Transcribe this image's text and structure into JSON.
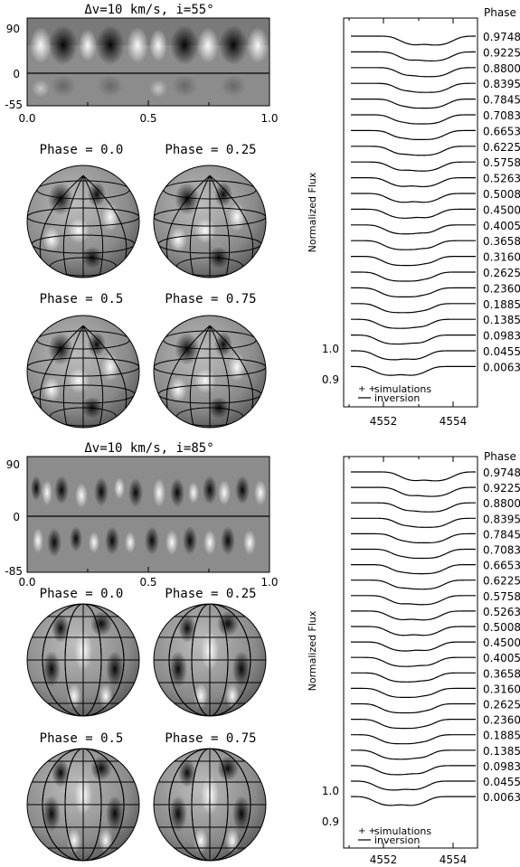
{
  "panels": [
    {
      "title": "Δv=10 km/s, i=55°",
      "map": {
        "y_ticks": [
          "90",
          "0",
          "-55"
        ],
        "x_ticks": [
          "0.0",
          "0.5",
          "1.0"
        ],
        "lat_top": 90,
        "lat_bottom": -55
      },
      "spheres": [
        {
          "label": "Phase = 0.0"
        },
        {
          "label": "Phase = 0.25"
        },
        {
          "label": "Phase = 0.5"
        },
        {
          "label": "Phase = 0.75"
        }
      ],
      "profiles": {
        "phase_header": "Phase",
        "phases": [
          "0.9748",
          "0.9225",
          "0.8800",
          "0.8395",
          "0.7845",
          "0.7083",
          "0.6653",
          "0.6225",
          "0.5758",
          "0.5263",
          "0.5008",
          "0.4500",
          "0.4005",
          "0.3658",
          "0.3160",
          "0.2625",
          "0.2360",
          "0.1885",
          "0.1385",
          "0.0983",
          "0.0455",
          "0.0063"
        ],
        "ylabel": "Normalized Flux",
        "y_ticks": [
          "1.0",
          "0.9"
        ],
        "x_ticks": [
          "4552",
          "4554"
        ],
        "legend": [
          "simulations",
          "inversion"
        ]
      }
    },
    {
      "title": "Δv=10 km/s, i=85°",
      "map": {
        "y_ticks": [
          "90",
          "0",
          "-85"
        ],
        "x_ticks": [
          "0.0",
          "0.5",
          "1.0"
        ],
        "lat_top": 90,
        "lat_bottom": -85
      },
      "spheres": [
        {
          "label": "Phase = 0.0"
        },
        {
          "label": "Phase = 0.25"
        },
        {
          "label": "Phase = 0.5"
        },
        {
          "label": "Phase = 0.75"
        }
      ],
      "profiles": {
        "phase_header": "Phase",
        "phases": [
          "0.9748",
          "0.9225",
          "0.8800",
          "0.8395",
          "0.7845",
          "0.7083",
          "0.6653",
          "0.6225",
          "0.5758",
          "0.5263",
          "0.5008",
          "0.4500",
          "0.4005",
          "0.3658",
          "0.3160",
          "0.2625",
          "0.2360",
          "0.1885",
          "0.1385",
          "0.0983",
          "0.0455",
          "0.0063"
        ],
        "ylabel": "Normalized Flux",
        "y_ticks": [
          "1.0",
          "0.9"
        ],
        "x_ticks": [
          "4552",
          "4554"
        ],
        "legend": [
          "simulations",
          "inversion"
        ]
      }
    }
  ],
  "chart_data": [
    {
      "type": "heatmap",
      "title": "Δv=10 km/s, i=55°",
      "xlim": [
        0.0,
        1.0
      ],
      "ylim": [
        -55,
        90
      ],
      "x_ticks": [
        "0.0",
        "0.5",
        "1.0"
      ],
      "y_ticks": [
        "90",
        "0",
        "-55"
      ]
    },
    {
      "type": "line",
      "ylabel": "Normalized Flux",
      "xlim": [
        4550.7,
        4555.2
      ],
      "x_ticks": [
        "4552",
        "4554"
      ],
      "y_ticks": [
        "1.0",
        "0.9"
      ],
      "series": [
        {
          "name": "simulations"
        },
        {
          "name": "inversion"
        }
      ],
      "phases": [
        "0.9748",
        "0.9225",
        "0.8800",
        "0.8395",
        "0.7845",
        "0.7083",
        "0.6653",
        "0.6225",
        "0.5758",
        "0.5263",
        "0.5008",
        "0.4500",
        "0.4005",
        "0.3658",
        "0.3160",
        "0.2625",
        "0.2360",
        "0.1885",
        "0.1385",
        "0.0983",
        "0.0455",
        "0.0063"
      ]
    },
    {
      "type": "heatmap",
      "title": "Δv=10 km/s, i=85°",
      "xlim": [
        0.0,
        1.0
      ],
      "ylim": [
        -85,
        90
      ],
      "x_ticks": [
        "0.0",
        "0.5",
        "1.0"
      ],
      "y_ticks": [
        "90",
        "0",
        "-85"
      ]
    },
    {
      "type": "line",
      "ylabel": "Normalized Flux",
      "xlim": [
        4550.7,
        4555.2
      ],
      "x_ticks": [
        "4552",
        "4554"
      ],
      "y_ticks": [
        "1.0",
        "0.9"
      ],
      "series": [
        {
          "name": "simulations"
        },
        {
          "name": "inversion"
        }
      ],
      "phases": [
        "0.9748",
        "0.9225",
        "0.8800",
        "0.8395",
        "0.7845",
        "0.7083",
        "0.6653",
        "0.6225",
        "0.5758",
        "0.5263",
        "0.5008",
        "0.4500",
        "0.4005",
        "0.3658",
        "0.3160",
        "0.2625",
        "0.2360",
        "0.1885",
        "0.1385",
        "0.0983",
        "0.0455",
        "0.0063"
      ]
    }
  ]
}
